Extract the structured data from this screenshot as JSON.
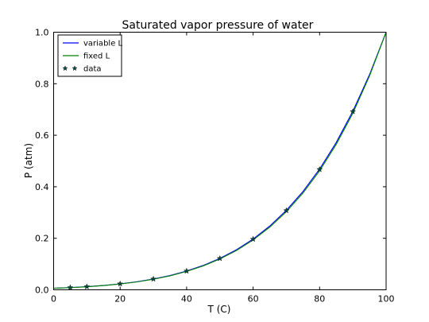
{
  "chart_data": {
    "type": "line",
    "title": "Saturated vapor pressure of water",
    "xlabel": "T (C)",
    "ylabel": "P (atm)",
    "xlim": [
      0,
      100
    ],
    "ylim": [
      0.0,
      1.0
    ],
    "xticks": [
      0,
      20,
      40,
      60,
      80,
      100
    ],
    "yticks": [
      0.0,
      0.2,
      0.4,
      0.6,
      0.8,
      1.0
    ],
    "xtick_labels": [
      "0",
      "20",
      "40",
      "60",
      "80",
      "100"
    ],
    "ytick_labels": [
      "0.0",
      "0.2",
      "0.4",
      "0.6",
      "0.8",
      "1.0"
    ],
    "grid": false,
    "legend_position": "top-left",
    "series": [
      {
        "name": "variable L",
        "kind": "line",
        "color": "#0000ff",
        "x": [
          0,
          5,
          10,
          15,
          20,
          25,
          30,
          35,
          40,
          45,
          50,
          55,
          60,
          65,
          70,
          75,
          80,
          85,
          90,
          95,
          100
        ],
        "y": [
          0.006,
          0.0086,
          0.0121,
          0.0168,
          0.0231,
          0.0313,
          0.0419,
          0.0555,
          0.0728,
          0.0946,
          0.1218,
          0.1555,
          0.1969,
          0.2474,
          0.3085,
          0.3817,
          0.4688,
          0.572,
          0.6932,
          0.8348,
          1.0
        ]
      },
      {
        "name": "fixed L",
        "kind": "line",
        "color": "#008000",
        "x": [
          0,
          5,
          10,
          15,
          20,
          25,
          30,
          35,
          40,
          45,
          50,
          55,
          60,
          65,
          70,
          75,
          80,
          85,
          90,
          95,
          100
        ],
        "y": [
          0.0059,
          0.0084,
          0.0118,
          0.0164,
          0.0225,
          0.0305,
          0.0409,
          0.0543,
          0.0713,
          0.0928,
          0.1195,
          0.1526,
          0.1934,
          0.2431,
          0.3033,
          0.3757,
          0.4621,
          0.5646,
          0.6856,
          0.8297,
          1.0
        ]
      },
      {
        "name": "data",
        "kind": "scatter",
        "marker": "star",
        "color": "#004d40",
        "x": [
          5,
          10,
          20,
          30,
          40,
          50,
          60,
          70,
          80,
          90
        ],
        "y": [
          0.0086,
          0.0121,
          0.0231,
          0.0419,
          0.0728,
          0.1217,
          0.1965,
          0.3075,
          0.4672,
          0.6919
        ]
      }
    ]
  }
}
